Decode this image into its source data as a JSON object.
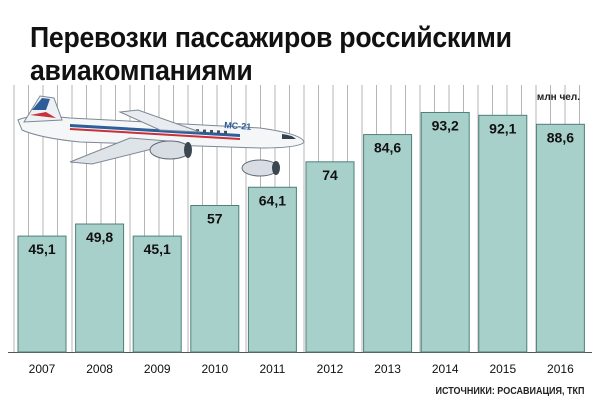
{
  "title_line1": "Перевозки пассажиров российскими",
  "title_line2": "авиакомпаниями",
  "unit_label": "млн чел.",
  "source_label": "ИСТОЧНИКИ: РОСАВИАЦИЯ, ТКП",
  "plane_tail_text": "МС-21",
  "colors": {
    "bar_fill": "#a8d0cb",
    "bar_stroke": "#4d7f79",
    "grid": "#b5b5b5",
    "text": "#111111"
  },
  "chart_data": {
    "type": "bar",
    "title": "Перевозки пассажиров российскими авиакомпаниями",
    "ylabel": "млн чел.",
    "categories": [
      "2007",
      "2008",
      "2009",
      "2010",
      "2011",
      "2012",
      "2013",
      "2014",
      "2015",
      "2016"
    ],
    "values": [
      45.1,
      49.8,
      45.1,
      57,
      64.1,
      74,
      84.6,
      93.2,
      92.1,
      88.6
    ],
    "value_labels": [
      "45,1",
      "49,8",
      "45,1",
      "57",
      "64,1",
      "74",
      "84,6",
      "93,2",
      "92,1",
      "88,6"
    ],
    "ylim": [
      0,
      100
    ],
    "grid": "vertical",
    "legend": "none"
  }
}
